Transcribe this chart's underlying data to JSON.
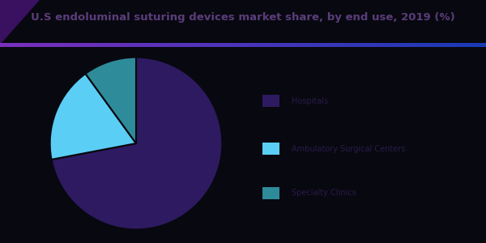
{
  "title": "U.S endoluminal suturing devices market share, by end use, 2019 (%)",
  "background_color": "#080810",
  "title_color": "#5a3d7a",
  "title_fontsize": 9.5,
  "slices": [
    {
      "label": "Hospitals",
      "value": 72,
      "color": "#2e1a60"
    },
    {
      "label": "Ambulatory Surgical Centers",
      "value": 18,
      "color": "#5bcef5"
    },
    {
      "label": "Specialty Clinics",
      "value": 10,
      "color": "#2e8b9a"
    }
  ],
  "legend_colors": [
    "#2e1a60",
    "#5bcef5",
    "#2e8b9a"
  ],
  "legend_labels": [
    "Hospitals",
    "Ambulatory Surgical Centers",
    "Specialty Clinics"
  ],
  "legend_text_color": "#2a1a4a",
  "startangle": 90,
  "gradient_line_left": "#6a0dad",
  "gradient_line_right": "#0000cd",
  "corner_color": "#3a1060"
}
